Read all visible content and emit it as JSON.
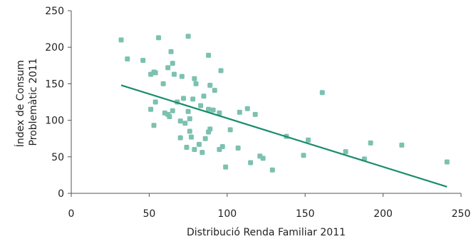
{
  "chart_data": {
    "type": "scatter",
    "title": "",
    "xlabel": "Distribució Renda Familiar 2011",
    "ylabel_lines": [
      "Índex de Consum",
      "Problemàtic 2011"
    ],
    "xlim": [
      0,
      250
    ],
    "ylim": [
      0,
      250
    ],
    "xticks": [
      "0",
      "50",
      "100",
      "150",
      "200",
      "250"
    ],
    "yticks": [
      "0",
      "50",
      "100",
      "150",
      "200",
      "250"
    ],
    "grid": false,
    "legend": "none",
    "colors": {
      "points": "#7cc1b0",
      "trendline": "#1a8c6c",
      "axis": "#555555"
    },
    "trendline": {
      "x": [
        32,
        241
      ],
      "y": [
        148,
        9
      ]
    },
    "points": [
      [
        32,
        210
      ],
      [
        36,
        184
      ],
      [
        46,
        182
      ],
      [
        51,
        163
      ],
      [
        53,
        166
      ],
      [
        54,
        165
      ],
      [
        56,
        213
      ],
      [
        59,
        150
      ],
      [
        62,
        172
      ],
      [
        64,
        194
      ],
      [
        65,
        178
      ],
      [
        66,
        163
      ],
      [
        71,
        160
      ],
      [
        75,
        215
      ],
      [
        79,
        157
      ],
      [
        80,
        150
      ],
      [
        88,
        189
      ],
      [
        89,
        148
      ],
      [
        92,
        141
      ],
      [
        96,
        168
      ],
      [
        51,
        115
      ],
      [
        53,
        93
      ],
      [
        54,
        125
      ],
      [
        60,
        110
      ],
      [
        62,
        108
      ],
      [
        63,
        105
      ],
      [
        65,
        113
      ],
      [
        68,
        125
      ],
      [
        72,
        130
      ],
      [
        70,
        99
      ],
      [
        73,
        96
      ],
      [
        75,
        112
      ],
      [
        76,
        102
      ],
      [
        78,
        129
      ],
      [
        83,
        120
      ],
      [
        85,
        133
      ],
      [
        88,
        115
      ],
      [
        91,
        114
      ],
      [
        95,
        110
      ],
      [
        70,
        76
      ],
      [
        74,
        63
      ],
      [
        76,
        85
      ],
      [
        77,
        77
      ],
      [
        79,
        60
      ],
      [
        82,
        67
      ],
      [
        84,
        56
      ],
      [
        86,
        75
      ],
      [
        88,
        84
      ],
      [
        89,
        88
      ],
      [
        95,
        60
      ],
      [
        97,
        64
      ],
      [
        99,
        36
      ],
      [
        102,
        87
      ],
      [
        107,
        62
      ],
      [
        108,
        111
      ],
      [
        113,
        116
      ],
      [
        115,
        42
      ],
      [
        118,
        108
      ],
      [
        121,
        51
      ],
      [
        123,
        48
      ],
      [
        129,
        32
      ],
      [
        138,
        78
      ],
      [
        149,
        52
      ],
      [
        152,
        73
      ],
      [
        161,
        138
      ],
      [
        176,
        57
      ],
      [
        188,
        47
      ],
      [
        192,
        69
      ],
      [
        212,
        66
      ],
      [
        241,
        43
      ]
    ]
  }
}
